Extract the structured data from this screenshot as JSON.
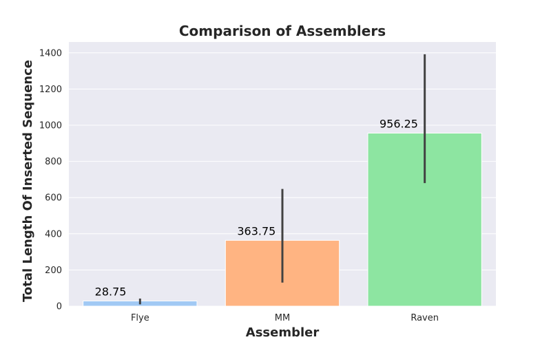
{
  "chart_data": {
    "type": "bar",
    "title": "Comparison of Assemblers",
    "xlabel": "Assembler",
    "ylabel": "Total Length Of Inserted Sequence",
    "categories": [
      "Flye",
      "MM",
      "Raven"
    ],
    "values": [
      28.75,
      363.75,
      956.25
    ],
    "value_labels": [
      "28.75",
      "363.75",
      "956.25"
    ],
    "error_bars": [
      {
        "low": 10,
        "high": 42
      },
      {
        "low": 130,
        "high": 648
      },
      {
        "low": 680,
        "high": 1392
      }
    ],
    "colors": [
      "#a1c9f4",
      "#ffb482",
      "#8de5a1"
    ],
    "error_bar_color": "#424242",
    "ylim": [
      0,
      1460
    ],
    "yticks": [
      0,
      200,
      400,
      600,
      800,
      1000,
      1200,
      1400
    ],
    "grid": true,
    "legend": "none",
    "background": "#eaeaf2"
  }
}
